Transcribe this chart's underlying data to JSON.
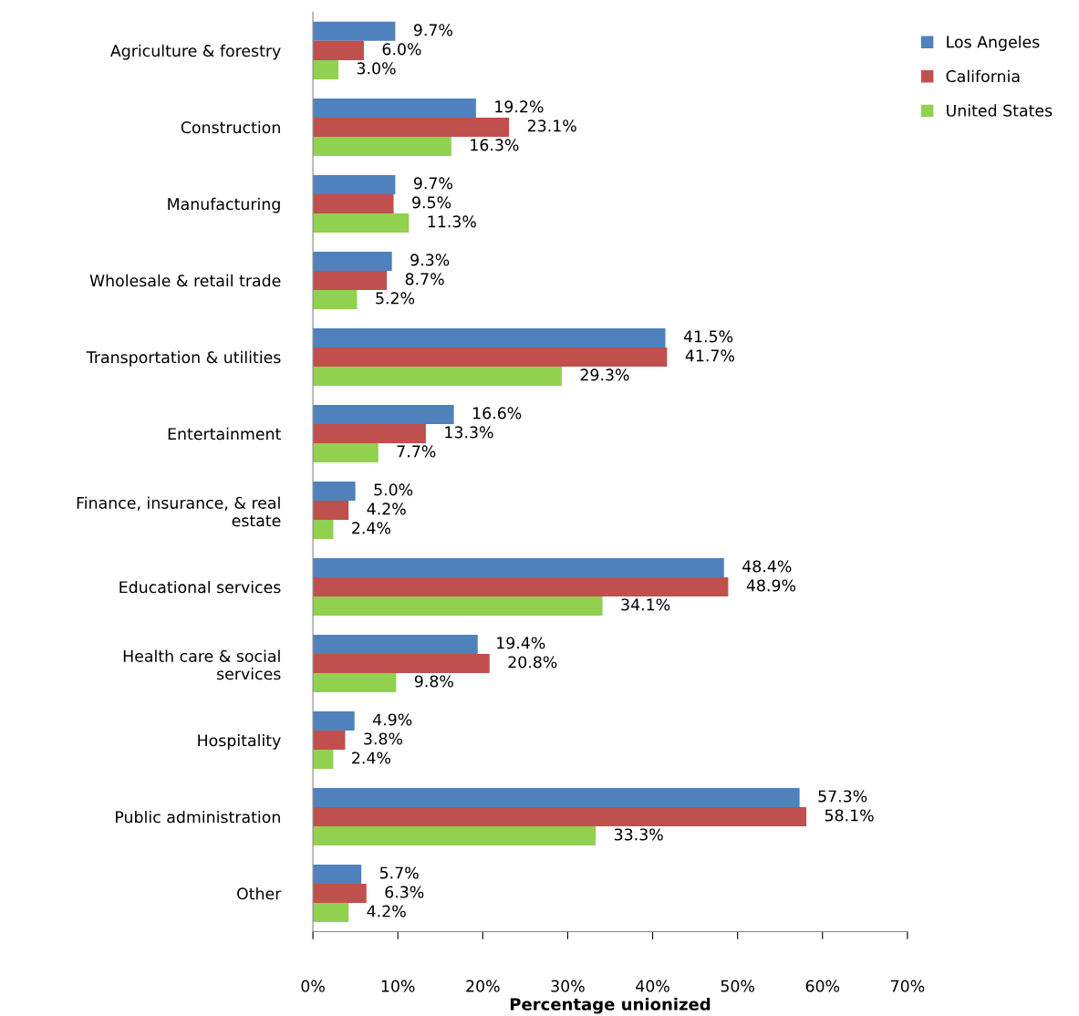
{
  "chart_data": {
    "type": "bar",
    "orientation": "horizontal",
    "xlabel": "Percentage unionized",
    "categories": [
      "Agriculture & forestry",
      "Construction",
      "Manufacturing",
      "Wholesale & retail trade",
      "Transportation & utilities",
      "Entertainment",
      "Finance, insurance, & real estate",
      "Educational services",
      "Health care & social services",
      "Hospitality",
      "Public administration",
      "Other"
    ],
    "series": [
      {
        "name": "Los Angeles",
        "color": "#4f81bd",
        "values": [
          9.7,
          19.2,
          9.7,
          9.3,
          41.5,
          16.6,
          5.0,
          48.4,
          19.4,
          4.9,
          57.3,
          5.7
        ],
        "value_labels": [
          "9.7%",
          "19.2%",
          "9.7%",
          "9.3%",
          "41.5%",
          "16.6%",
          "5.0%",
          "48.4%",
          "19.4%",
          "4.9%",
          "57.3%",
          "5.7%"
        ]
      },
      {
        "name": "California",
        "color": "#c0504d",
        "values": [
          6.0,
          23.1,
          9.5,
          8.7,
          41.7,
          13.3,
          4.2,
          48.9,
          20.8,
          3.8,
          58.1,
          6.3
        ],
        "value_labels": [
          "6.0%",
          "23.1%",
          "9.5%",
          "8.7%",
          "41.7%",
          "13.3%",
          "4.2%",
          "48.9%",
          "20.8%",
          "3.8%",
          "58.1%",
          "6.3%"
        ]
      },
      {
        "name": "United States",
        "color": "#92d050",
        "values": [
          3.0,
          16.3,
          11.3,
          5.2,
          29.3,
          7.7,
          2.4,
          34.1,
          9.8,
          2.4,
          33.3,
          4.2
        ],
        "value_labels": [
          "3.0%",
          "16.3%",
          "11.3%",
          "5.2%",
          "29.3%",
          "7.7%",
          "2.4%",
          "34.1%",
          "9.8%",
          "2.4%",
          "33.3%",
          "4.2%"
        ]
      }
    ],
    "xlim": [
      0,
      70
    ],
    "xticks": [
      {
        "value": 0,
        "label": "0%"
      },
      {
        "value": 10,
        "label": "10%"
      },
      {
        "value": 20,
        "label": "20%"
      },
      {
        "value": 30,
        "label": "30%"
      },
      {
        "value": 40,
        "label": "40%"
      },
      {
        "value": 50,
        "label": "50%"
      },
      {
        "value": 60,
        "label": "60%"
      },
      {
        "value": 70,
        "label": "70%"
      }
    ],
    "legend": "top right",
    "grid": false
  }
}
